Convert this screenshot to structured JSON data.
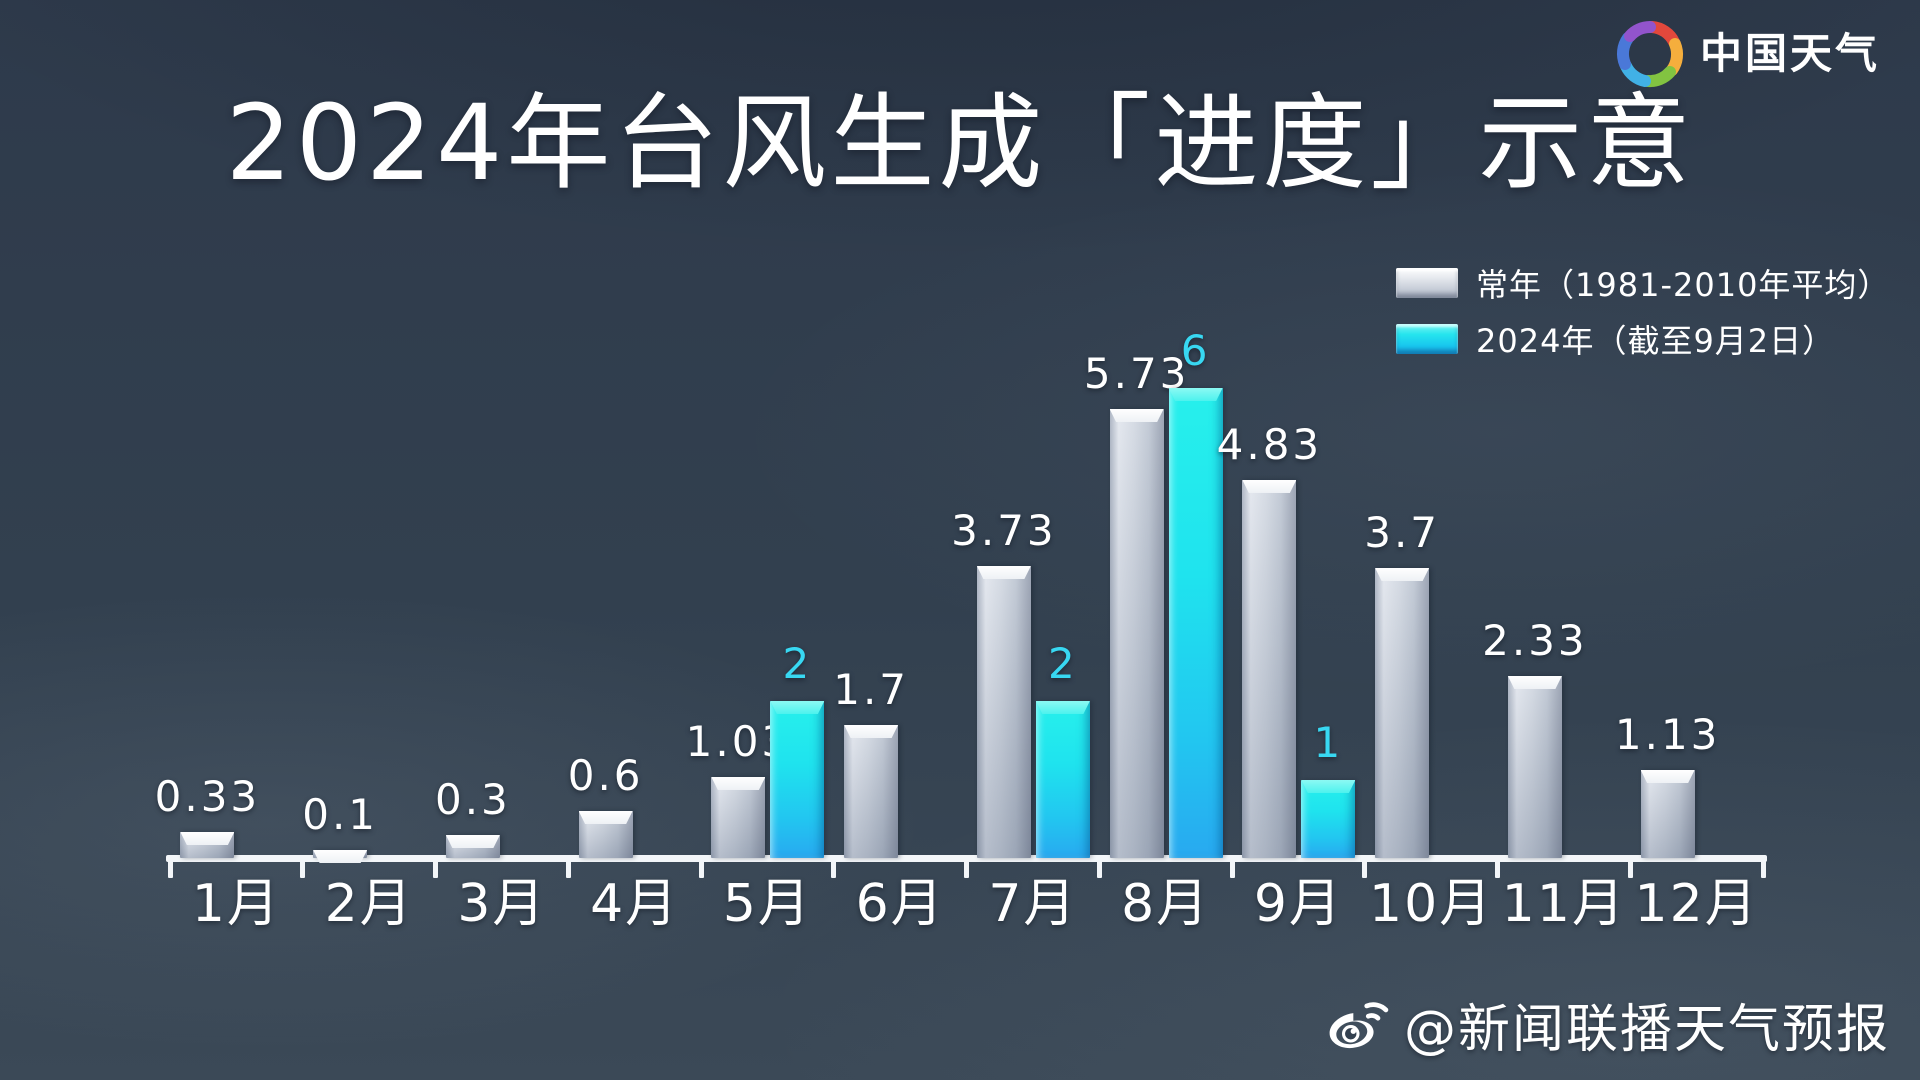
{
  "logo": {
    "icon": "pinwheel-icon",
    "text": "中国天气"
  },
  "title": "2024年台风生成「进度」示意",
  "legend": {
    "items": [
      {
        "label": "常年（1981-2010年平均）",
        "swatch": "gray",
        "color": "#d9dde6"
      },
      {
        "label": "2024年（截至9月2日）",
        "swatch": "cyan",
        "color": "#23dcf2"
      }
    ]
  },
  "watermark": {
    "icon": "weibo-icon",
    "text": "@新闻联播天气预报"
  },
  "colors": {
    "background": "#303d4f",
    "bar_gray": "#d9dde6",
    "bar_cyan": "#23dcf2",
    "value_label_gray_series": "#ffffff",
    "value_label_2024_series": "#38d8f2",
    "axis": "#f3f6f9"
  },
  "chart_data": {
    "type": "bar",
    "title": "2024年台风生成「进度」示意",
    "categories": [
      "1月",
      "2月",
      "3月",
      "4月",
      "5月",
      "6月",
      "7月",
      "8月",
      "9月",
      "10月",
      "11月",
      "12月"
    ],
    "series": [
      {
        "name": "常年（1981-2010年平均）",
        "color": "#d9dde6",
        "values": [
          0.33,
          0.1,
          0.3,
          0.6,
          1.03,
          1.7,
          3.73,
          5.73,
          4.83,
          3.7,
          2.33,
          1.13
        ]
      },
      {
        "name": "2024年（截至9月2日）",
        "color": "#23dcf2",
        "values": [
          null,
          null,
          null,
          null,
          2,
          null,
          2,
          6,
          1,
          null,
          null,
          null
        ]
      }
    ],
    "xlabel": "",
    "ylabel": "",
    "ylim": [
      0,
      6.5
    ],
    "grid": false,
    "legend_position": "top-right",
    "value_labels": "above-bars"
  }
}
